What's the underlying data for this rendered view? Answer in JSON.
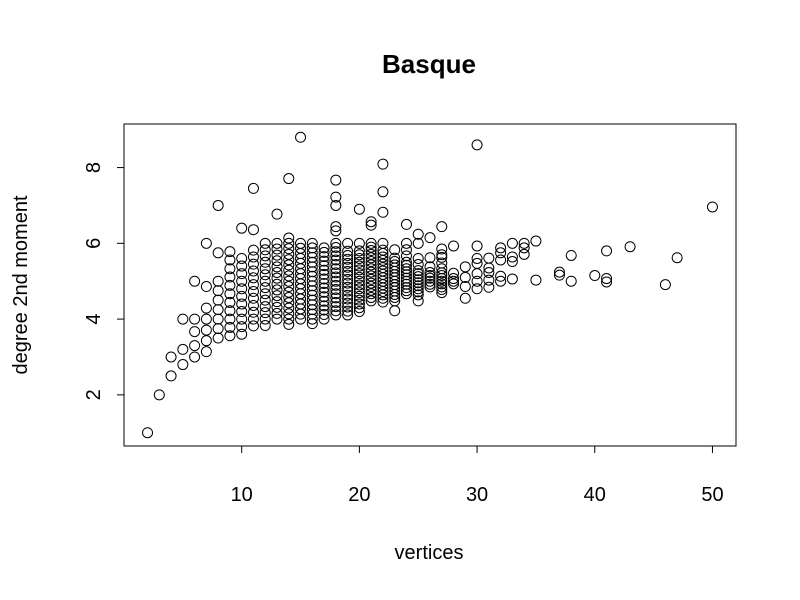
{
  "chart_data": {
    "type": "scatter",
    "title": "Basque",
    "xlabel": "vertices",
    "ylabel": "degree 2nd moment",
    "xlim": [
      0.0,
      52.0
    ],
    "ylim": [
      0.65,
      9.15
    ],
    "xticks": [
      10,
      20,
      30,
      40,
      50
    ],
    "yticks": [
      2,
      4,
      6,
      8
    ],
    "grid": false,
    "legend": "none",
    "points": [
      [
        2,
        1.0
      ],
      [
        3,
        2.0
      ],
      [
        4,
        2.5
      ],
      [
        4,
        3.0
      ],
      [
        5,
        2.8
      ],
      [
        5,
        3.2
      ],
      [
        5,
        4.0
      ],
      [
        6,
        3.0
      ],
      [
        6,
        3.3
      ],
      [
        6,
        3.67
      ],
      [
        6,
        4.0
      ],
      [
        6,
        5.0
      ],
      [
        7,
        3.14
      ],
      [
        7,
        3.43
      ],
      [
        7,
        3.71
      ],
      [
        7,
        4.0
      ],
      [
        7,
        4.29
      ],
      [
        7,
        4.86
      ],
      [
        7,
        6.0
      ],
      [
        8,
        3.5
      ],
      [
        8,
        3.75
      ],
      [
        8,
        4.0
      ],
      [
        8,
        4.25
      ],
      [
        8,
        4.5
      ],
      [
        8,
        4.75
      ],
      [
        8,
        5.0
      ],
      [
        8,
        5.75
      ],
      [
        8,
        7.0
      ],
      [
        9,
        3.56
      ],
      [
        9,
        3.78
      ],
      [
        9,
        4.0
      ],
      [
        9,
        4.22
      ],
      [
        9,
        4.44
      ],
      [
        9,
        4.67
      ],
      [
        9,
        4.89
      ],
      [
        9,
        5.11
      ],
      [
        9,
        5.33
      ],
      [
        9,
        5.56
      ],
      [
        9,
        5.78
      ],
      [
        10,
        3.6
      ],
      [
        10,
        3.8
      ],
      [
        10,
        4.0
      ],
      [
        10,
        4.2
      ],
      [
        10,
        4.4
      ],
      [
        10,
        4.6
      ],
      [
        10,
        4.8
      ],
      [
        10,
        5.0
      ],
      [
        10,
        5.2
      ],
      [
        10,
        5.4
      ],
      [
        10,
        5.6
      ],
      [
        10,
        6.4
      ],
      [
        11,
        3.82
      ],
      [
        11,
        4.0
      ],
      [
        11,
        4.18
      ],
      [
        11,
        4.36
      ],
      [
        11,
        4.55
      ],
      [
        11,
        4.73
      ],
      [
        11,
        4.91
      ],
      [
        11,
        5.09
      ],
      [
        11,
        5.27
      ],
      [
        11,
        5.45
      ],
      [
        11,
        5.64
      ],
      [
        11,
        5.82
      ],
      [
        11,
        6.36
      ],
      [
        11,
        7.45
      ],
      [
        12,
        3.83
      ],
      [
        12,
        4.0
      ],
      [
        12,
        4.17
      ],
      [
        12,
        4.33
      ],
      [
        12,
        4.5
      ],
      [
        12,
        4.67
      ],
      [
        12,
        4.83
      ],
      [
        12,
        5.0
      ],
      [
        12,
        5.17
      ],
      [
        12,
        5.33
      ],
      [
        12,
        5.5
      ],
      [
        12,
        5.67
      ],
      [
        12,
        5.83
      ],
      [
        12,
        6.0
      ],
      [
        13,
        4.0
      ],
      [
        13,
        4.15
      ],
      [
        13,
        4.31
      ],
      [
        13,
        4.46
      ],
      [
        13,
        4.62
      ],
      [
        13,
        4.77
      ],
      [
        13,
        4.92
      ],
      [
        13,
        5.08
      ],
      [
        13,
        5.23
      ],
      [
        13,
        5.38
      ],
      [
        13,
        5.54
      ],
      [
        13,
        5.69
      ],
      [
        13,
        5.85
      ],
      [
        13,
        6.0
      ],
      [
        13,
        6.77
      ],
      [
        14,
        3.86
      ],
      [
        14,
        4.0
      ],
      [
        14,
        4.14
      ],
      [
        14,
        4.29
      ],
      [
        14,
        4.43
      ],
      [
        14,
        4.57
      ],
      [
        14,
        4.71
      ],
      [
        14,
        4.86
      ],
      [
        14,
        5.0
      ],
      [
        14,
        5.14
      ],
      [
        14,
        5.29
      ],
      [
        14,
        5.43
      ],
      [
        14,
        5.57
      ],
      [
        14,
        5.71
      ],
      [
        14,
        5.86
      ],
      [
        14,
        6.0
      ],
      [
        14,
        6.14
      ],
      [
        14,
        7.71
      ],
      [
        15,
        4.0
      ],
      [
        15,
        4.13
      ],
      [
        15,
        4.27
      ],
      [
        15,
        4.4
      ],
      [
        15,
        4.53
      ],
      [
        15,
        4.67
      ],
      [
        15,
        4.8
      ],
      [
        15,
        4.93
      ],
      [
        15,
        5.07
      ],
      [
        15,
        5.2
      ],
      [
        15,
        5.33
      ],
      [
        15,
        5.47
      ],
      [
        15,
        5.6
      ],
      [
        15,
        5.73
      ],
      [
        15,
        5.87
      ],
      [
        15,
        6.0
      ],
      [
        15,
        8.8
      ],
      [
        16,
        3.88
      ],
      [
        16,
        4.0
      ],
      [
        16,
        4.13
      ],
      [
        16,
        4.25
      ],
      [
        16,
        4.38
      ],
      [
        16,
        4.5
      ],
      [
        16,
        4.63
      ],
      [
        16,
        4.75
      ],
      [
        16,
        4.88
      ],
      [
        16,
        5.0
      ],
      [
        16,
        5.13
      ],
      [
        16,
        5.25
      ],
      [
        16,
        5.38
      ],
      [
        16,
        5.5
      ],
      [
        16,
        5.63
      ],
      [
        16,
        5.75
      ],
      [
        16,
        5.88
      ],
      [
        16,
        6.0
      ],
      [
        17,
        4.0
      ],
      [
        17,
        4.12
      ],
      [
        17,
        4.24
      ],
      [
        17,
        4.35
      ],
      [
        17,
        4.47
      ],
      [
        17,
        4.59
      ],
      [
        17,
        4.71
      ],
      [
        17,
        4.82
      ],
      [
        17,
        4.94
      ],
      [
        17,
        5.06
      ],
      [
        17,
        5.18
      ],
      [
        17,
        5.29
      ],
      [
        17,
        5.41
      ],
      [
        17,
        5.53
      ],
      [
        17,
        5.65
      ],
      [
        17,
        5.76
      ],
      [
        17,
        5.88
      ],
      [
        18,
        4.11
      ],
      [
        18,
        4.22
      ],
      [
        18,
        4.33
      ],
      [
        18,
        4.44
      ],
      [
        18,
        4.56
      ],
      [
        18,
        4.67
      ],
      [
        18,
        4.78
      ],
      [
        18,
        4.89
      ],
      [
        18,
        5.0
      ],
      [
        18,
        5.11
      ],
      [
        18,
        5.22
      ],
      [
        18,
        5.33
      ],
      [
        18,
        5.44
      ],
      [
        18,
        5.56
      ],
      [
        18,
        5.67
      ],
      [
        18,
        5.78
      ],
      [
        18,
        5.89
      ],
      [
        18,
        6.0
      ],
      [
        18,
        6.33
      ],
      [
        18,
        6.44
      ],
      [
        18,
        7.0
      ],
      [
        18,
        7.22
      ],
      [
        18,
        7.67
      ],
      [
        19,
        4.11
      ],
      [
        19,
        4.21
      ],
      [
        19,
        4.32
      ],
      [
        19,
        4.42
      ],
      [
        19,
        4.53
      ],
      [
        19,
        4.63
      ],
      [
        19,
        4.74
      ],
      [
        19,
        4.84
      ],
      [
        19,
        4.95
      ],
      [
        19,
        5.05
      ],
      [
        19,
        5.16
      ],
      [
        19,
        5.26
      ],
      [
        19,
        5.37
      ],
      [
        19,
        5.47
      ],
      [
        19,
        5.58
      ],
      [
        19,
        5.68
      ],
      [
        19,
        5.79
      ],
      [
        19,
        6.0
      ],
      [
        20,
        4.2
      ],
      [
        20,
        4.3
      ],
      [
        20,
        4.4
      ],
      [
        20,
        4.5
      ],
      [
        20,
        4.6
      ],
      [
        20,
        4.7
      ],
      [
        20,
        4.8
      ],
      [
        20,
        4.9
      ],
      [
        20,
        5.0
      ],
      [
        20,
        5.1
      ],
      [
        20,
        5.2
      ],
      [
        20,
        5.3
      ],
      [
        20,
        5.4
      ],
      [
        20,
        5.5
      ],
      [
        20,
        5.6
      ],
      [
        20,
        5.7
      ],
      [
        20,
        5.8
      ],
      [
        20,
        6.0
      ],
      [
        20,
        6.9
      ],
      [
        21,
        4.48
      ],
      [
        21,
        4.57
      ],
      [
        21,
        4.67
      ],
      [
        21,
        4.76
      ],
      [
        21,
        4.86
      ],
      [
        21,
        4.95
      ],
      [
        21,
        5.05
      ],
      [
        21,
        5.14
      ],
      [
        21,
        5.24
      ],
      [
        21,
        5.33
      ],
      [
        21,
        5.43
      ],
      [
        21,
        5.52
      ],
      [
        21,
        5.62
      ],
      [
        21,
        5.71
      ],
      [
        21,
        5.81
      ],
      [
        21,
        5.9
      ],
      [
        21,
        6.0
      ],
      [
        21,
        6.48
      ],
      [
        21,
        6.57
      ],
      [
        22,
        4.45
      ],
      [
        22,
        4.55
      ],
      [
        22,
        4.64
      ],
      [
        22,
        4.73
      ],
      [
        22,
        4.82
      ],
      [
        22,
        4.91
      ],
      [
        22,
        5.0
      ],
      [
        22,
        5.09
      ],
      [
        22,
        5.18
      ],
      [
        22,
        5.27
      ],
      [
        22,
        5.36
      ],
      [
        22,
        5.45
      ],
      [
        22,
        5.55
      ],
      [
        22,
        5.64
      ],
      [
        22,
        5.73
      ],
      [
        22,
        5.82
      ],
      [
        22,
        6.0
      ],
      [
        22,
        6.82
      ],
      [
        22,
        7.36
      ],
      [
        22,
        8.09
      ],
      [
        23,
        4.22
      ],
      [
        23,
        4.48
      ],
      [
        23,
        4.57
      ],
      [
        23,
        4.65
      ],
      [
        23,
        4.74
      ],
      [
        23,
        4.83
      ],
      [
        23,
        4.91
      ],
      [
        23,
        5.0
      ],
      [
        23,
        5.09
      ],
      [
        23,
        5.17
      ],
      [
        23,
        5.26
      ],
      [
        23,
        5.35
      ],
      [
        23,
        5.43
      ],
      [
        23,
        5.52
      ],
      [
        23,
        5.61
      ],
      [
        23,
        5.83
      ],
      [
        24,
        4.67
      ],
      [
        24,
        4.75
      ],
      [
        24,
        4.83
      ],
      [
        24,
        4.92
      ],
      [
        24,
        5.0
      ],
      [
        24,
        5.08
      ],
      [
        24,
        5.17
      ],
      [
        24,
        5.25
      ],
      [
        24,
        5.33
      ],
      [
        24,
        5.42
      ],
      [
        24,
        5.5
      ],
      [
        24,
        5.67
      ],
      [
        24,
        5.83
      ],
      [
        24,
        6.0
      ],
      [
        24,
        6.5
      ],
      [
        25,
        4.48
      ],
      [
        25,
        4.64
      ],
      [
        25,
        4.72
      ],
      [
        25,
        4.8
      ],
      [
        25,
        4.88
      ],
      [
        25,
        4.96
      ],
      [
        25,
        5.04
      ],
      [
        25,
        5.12
      ],
      [
        25,
        5.2
      ],
      [
        25,
        5.28
      ],
      [
        25,
        5.44
      ],
      [
        25,
        5.6
      ],
      [
        25,
        6.0
      ],
      [
        25,
        6.24
      ],
      [
        26,
        4.85
      ],
      [
        26,
        4.92
      ],
      [
        26,
        5.0
      ],
      [
        26,
        5.08
      ],
      [
        26,
        5.15
      ],
      [
        26,
        5.23
      ],
      [
        26,
        5.38
      ],
      [
        26,
        5.62
      ],
      [
        26,
        6.15
      ],
      [
        27,
        4.7
      ],
      [
        27,
        4.78
      ],
      [
        27,
        4.85
      ],
      [
        27,
        4.93
      ],
      [
        27,
        5.0
      ],
      [
        27,
        5.07
      ],
      [
        27,
        5.15
      ],
      [
        27,
        5.22
      ],
      [
        27,
        5.33
      ],
      [
        27,
        5.48
      ],
      [
        27,
        5.63
      ],
      [
        27,
        5.7
      ],
      [
        27,
        5.85
      ],
      [
        27,
        6.44
      ],
      [
        28,
        4.93
      ],
      [
        28,
        5.0
      ],
      [
        28,
        5.07
      ],
      [
        28,
        5.21
      ],
      [
        28,
        5.93
      ],
      [
        29,
        4.55
      ],
      [
        29,
        4.86
      ],
      [
        29,
        5.1
      ],
      [
        29,
        5.38
      ],
      [
        30,
        4.8
      ],
      [
        30,
        5.0
      ],
      [
        30,
        5.2
      ],
      [
        30,
        5.47
      ],
      [
        30,
        5.6
      ],
      [
        30,
        5.93
      ],
      [
        30,
        8.6
      ],
      [
        31,
        4.84
      ],
      [
        31,
        5.03
      ],
      [
        31,
        5.23
      ],
      [
        31,
        5.35
      ],
      [
        31,
        5.61
      ],
      [
        32,
        5.0
      ],
      [
        32,
        5.13
      ],
      [
        32,
        5.56
      ],
      [
        32,
        5.75
      ],
      [
        32,
        5.88
      ],
      [
        33,
        5.06
      ],
      [
        33,
        5.52
      ],
      [
        33,
        5.64
      ],
      [
        33,
        6.0
      ],
      [
        34,
        5.71
      ],
      [
        34,
        5.88
      ],
      [
        34,
        6.0
      ],
      [
        35,
        5.03
      ],
      [
        35,
        6.06
      ],
      [
        37,
        5.16
      ],
      [
        37,
        5.24
      ],
      [
        38,
        5.0
      ],
      [
        38,
        5.68
      ],
      [
        40,
        5.15
      ],
      [
        41,
        4.98
      ],
      [
        41,
        5.07
      ],
      [
        41,
        5.8
      ],
      [
        43,
        5.91
      ],
      [
        46,
        4.91
      ],
      [
        47,
        5.62
      ],
      [
        50,
        6.96
      ]
    ]
  }
}
